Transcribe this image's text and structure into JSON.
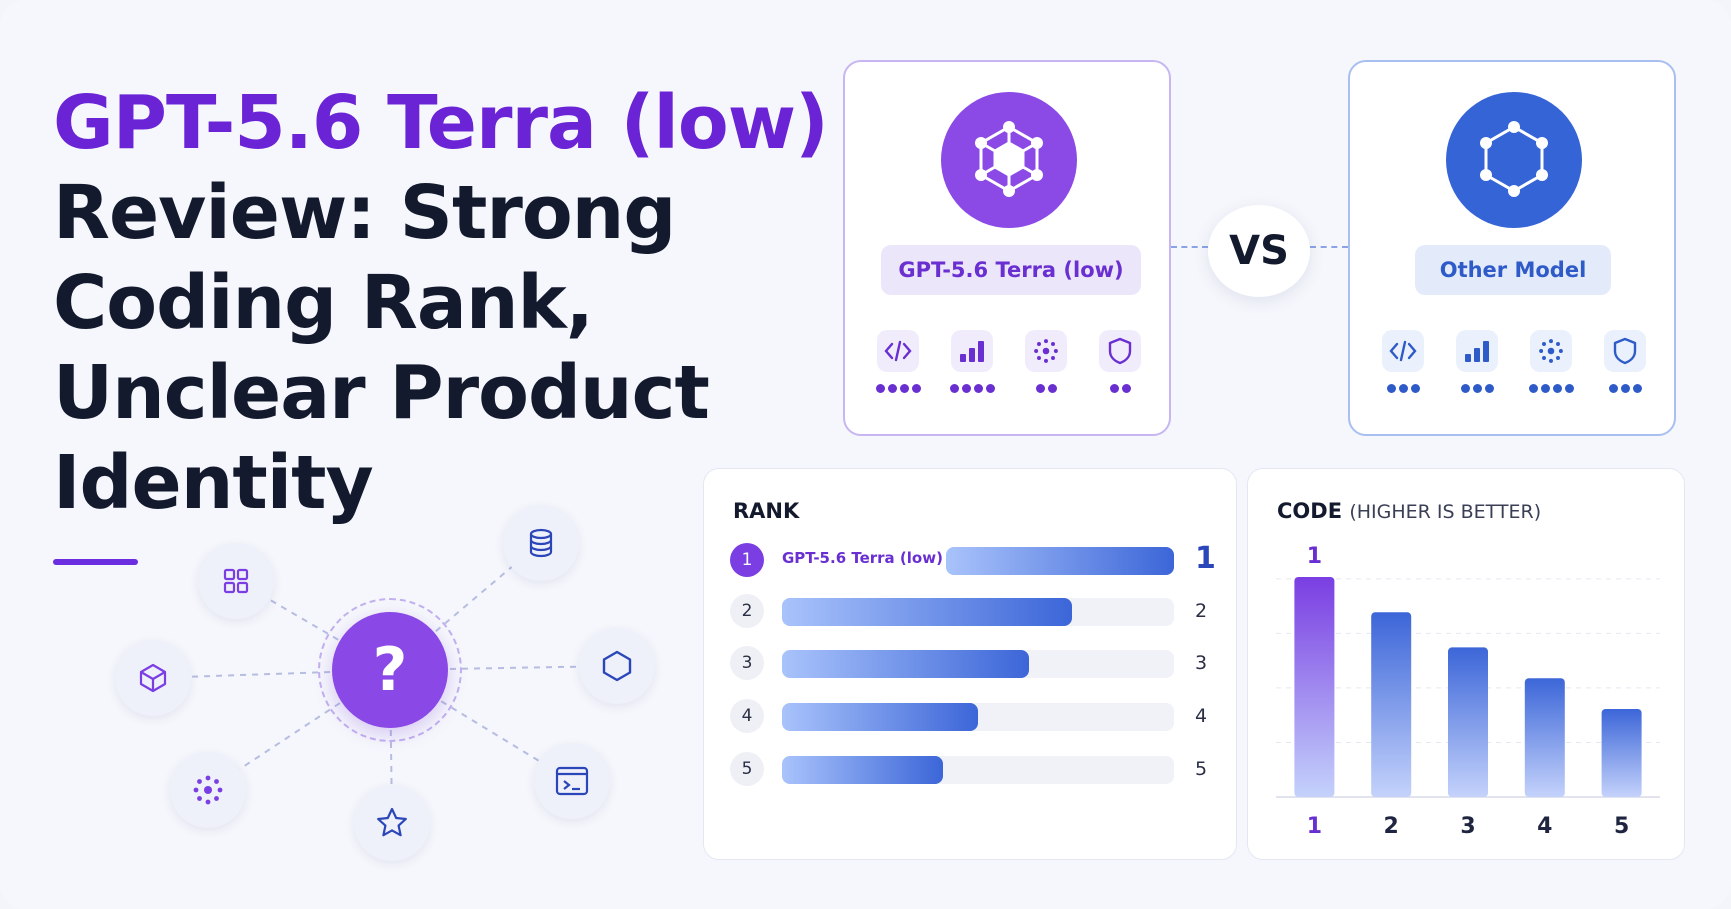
{
  "title": {
    "accent": "GPT-5.6 Terra (low)",
    "lines": [
      "Review: Strong",
      "Coding Rank,",
      "Unclear Product",
      "Identity"
    ]
  },
  "hub": {
    "center_symbol": "?",
    "center_color": "#8a48e6",
    "nodes": [
      "grid-icon",
      "database-icon",
      "cube-icon",
      "hexagon-icon",
      "network-icon",
      "star-icon",
      "terminal-icon"
    ]
  },
  "comparison": {
    "vs_label": "VS",
    "left": {
      "name": "GPT-5.6 Terra (low)",
      "color": "#8b4ae6",
      "metrics": [
        {
          "icon": "code-icon",
          "dots": 4
        },
        {
          "icon": "bar-chart-icon",
          "dots": 4
        },
        {
          "icon": "network-icon",
          "dots": 2
        },
        {
          "icon": "shield-icon",
          "dots": 2
        }
      ]
    },
    "right": {
      "name": "Other Model",
      "color": "#3564d6",
      "metrics": [
        {
          "icon": "code-icon",
          "dots": 3
        },
        {
          "icon": "bar-chart-icon",
          "dots": 3
        },
        {
          "icon": "network-icon",
          "dots": 4
        },
        {
          "icon": "shield-icon",
          "dots": 3
        }
      ]
    }
  },
  "rank_panel": {
    "title": "RANK",
    "rows": [
      {
        "rank": "1",
        "label": "GPT-5.6 Terra (low)",
        "value": "1",
        "bar": 1.0
      },
      {
        "rank": "2",
        "label": "",
        "value": "2",
        "bar": 0.74
      },
      {
        "rank": "3",
        "label": "",
        "value": "3",
        "bar": 0.63
      },
      {
        "rank": "4",
        "label": "",
        "value": "4",
        "bar": 0.5
      },
      {
        "rank": "5",
        "label": "",
        "value": "5",
        "bar": 0.41
      }
    ]
  },
  "chart_data": {
    "type": "bar",
    "title": "CODE",
    "subtitle": "(HIGHER IS BETTER)",
    "categories": [
      "1",
      "2",
      "3",
      "4",
      "5"
    ],
    "values": [
      100,
      84,
      68,
      54,
      40
    ],
    "top_label": "1",
    "ylim": [
      0,
      110
    ],
    "grid": true,
    "colors": [
      "#7a3ee2",
      "#3c66d8",
      "#3c66d8",
      "#3c66d8",
      "#3c66d8"
    ]
  }
}
